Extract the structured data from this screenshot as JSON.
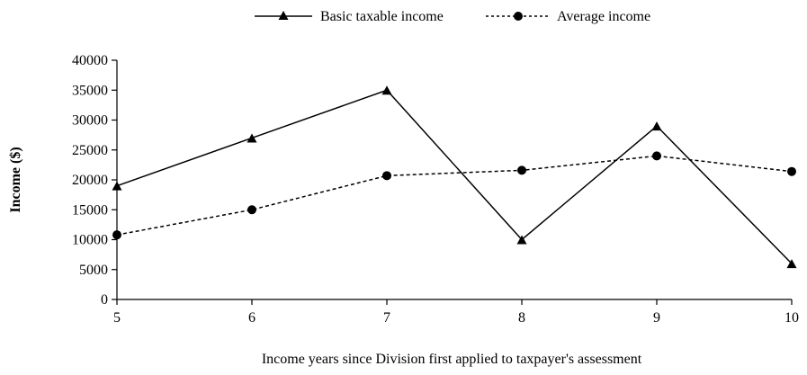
{
  "chart_data": {
    "type": "line",
    "title": "",
    "xlabel": "Income years since Division first applied to taxpayer's assessment",
    "ylabel": "Income ($)",
    "x": [
      5,
      6,
      7,
      8,
      9,
      10
    ],
    "xlim": [
      5,
      10
    ],
    "ylim": [
      0,
      40000
    ],
    "ytick_step": 5000,
    "grid": false,
    "legend_position": "top-center",
    "series": [
      {
        "name": "Basic taxable income",
        "values": [
          19000,
          27000,
          35000,
          10000,
          29000,
          6000
        ],
        "line_style": "solid",
        "marker": "triangle",
        "color": "#000000"
      },
      {
        "name": "Average income",
        "values": [
          10800,
          15000,
          20700,
          21600,
          24000,
          21400
        ],
        "line_style": "dashed",
        "marker": "circle",
        "color": "#000000"
      }
    ]
  }
}
